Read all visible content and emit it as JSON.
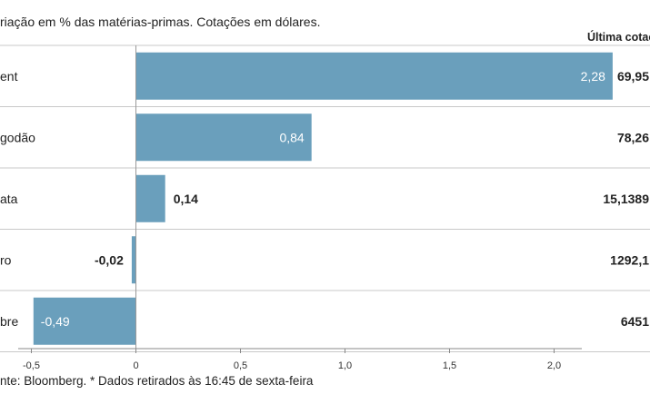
{
  "subtitle": "riação em % das matérias-primas. Cotações em dólares.",
  "source": "nte: Bloomberg.  * Dados retirados às 16:45 de sexta-feira",
  "chart_data": {
    "type": "bar",
    "orientation": "horizontal",
    "categories": [
      "ent",
      "godão",
      "ata",
      "ro",
      "bre"
    ],
    "values": [
      2.28,
      0.84,
      0.14,
      -0.02,
      -0.49
    ],
    "value_labels": [
      "2,28",
      "0,84",
      "0,14",
      "-0,02",
      "-0,49"
    ],
    "last_quote_header": "Última cotaç",
    "last_quotes": [
      "69,95",
      "78,26",
      "15,1389",
      "1292,1",
      "6451"
    ],
    "xlim": [
      -0.5,
      2.35
    ],
    "xticks": [
      -0.5,
      0,
      0.5,
      1.0,
      1.5,
      2.0
    ],
    "xtick_labels": [
      "-0,5",
      "0",
      "0,5",
      "1,0",
      "1,5",
      "2,0"
    ],
    "grid": false,
    "bar_color": "#6a9fbc"
  }
}
